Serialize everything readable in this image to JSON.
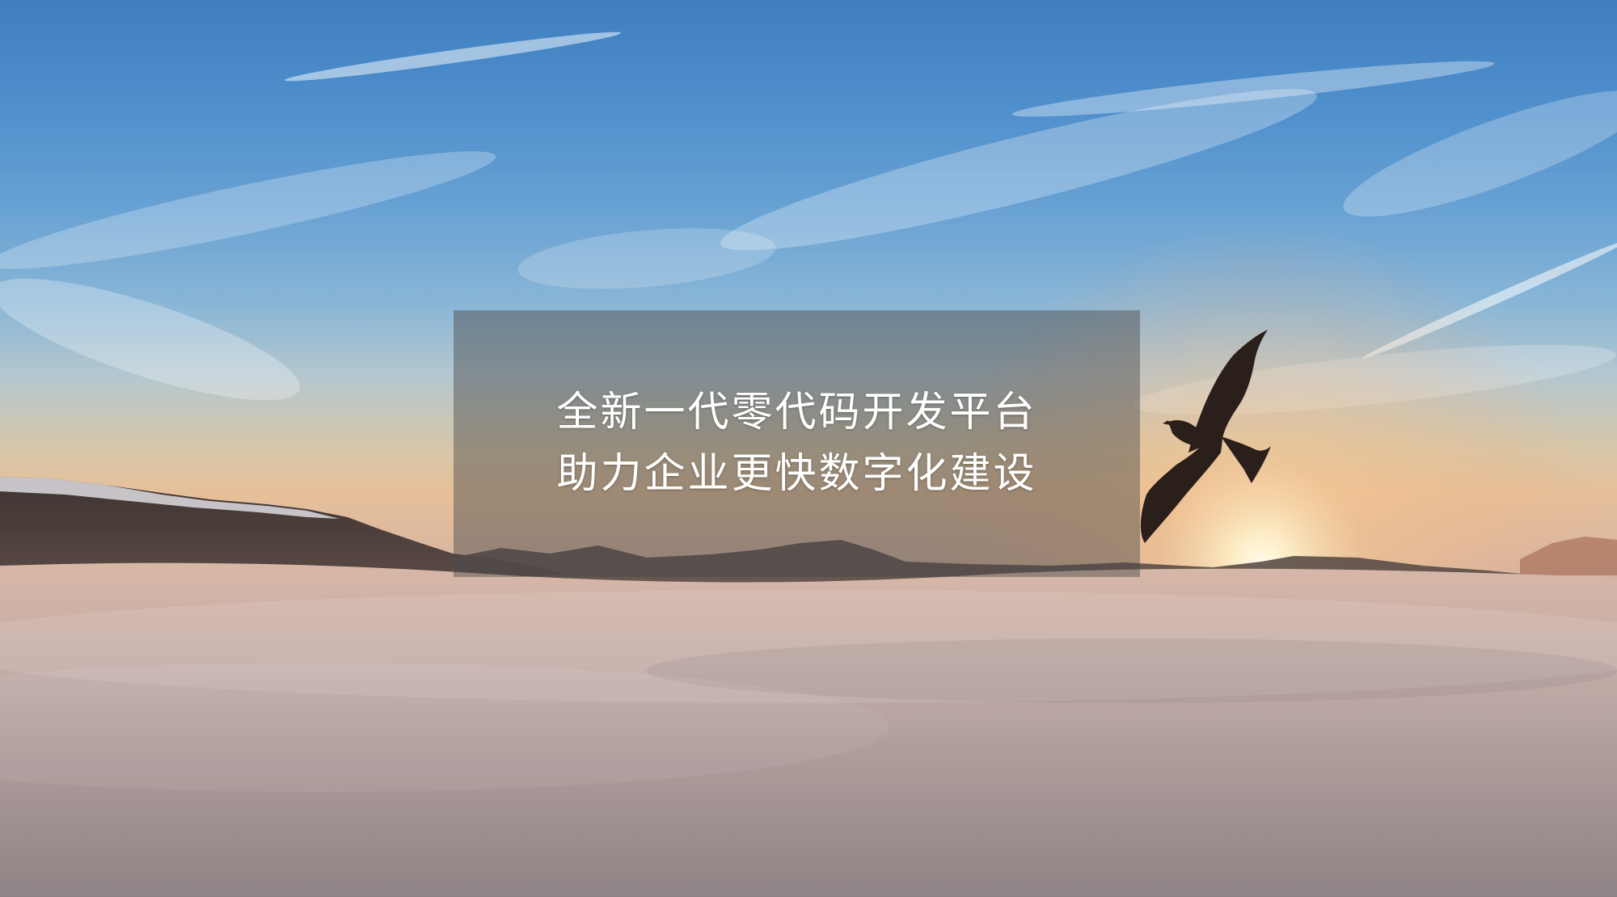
{
  "hero": {
    "headline_line1": "全新一代零代码开发平台",
    "headline_line2": "助力企业更快数字化建设"
  },
  "scene": {
    "subject_icon": "eagle-icon",
    "colors": {
      "sky_top": "#3f7fbf",
      "horizon_glow": "#f3c08a",
      "cloud_sea": "#a89a9b",
      "caption_overlay": "#464646"
    }
  }
}
